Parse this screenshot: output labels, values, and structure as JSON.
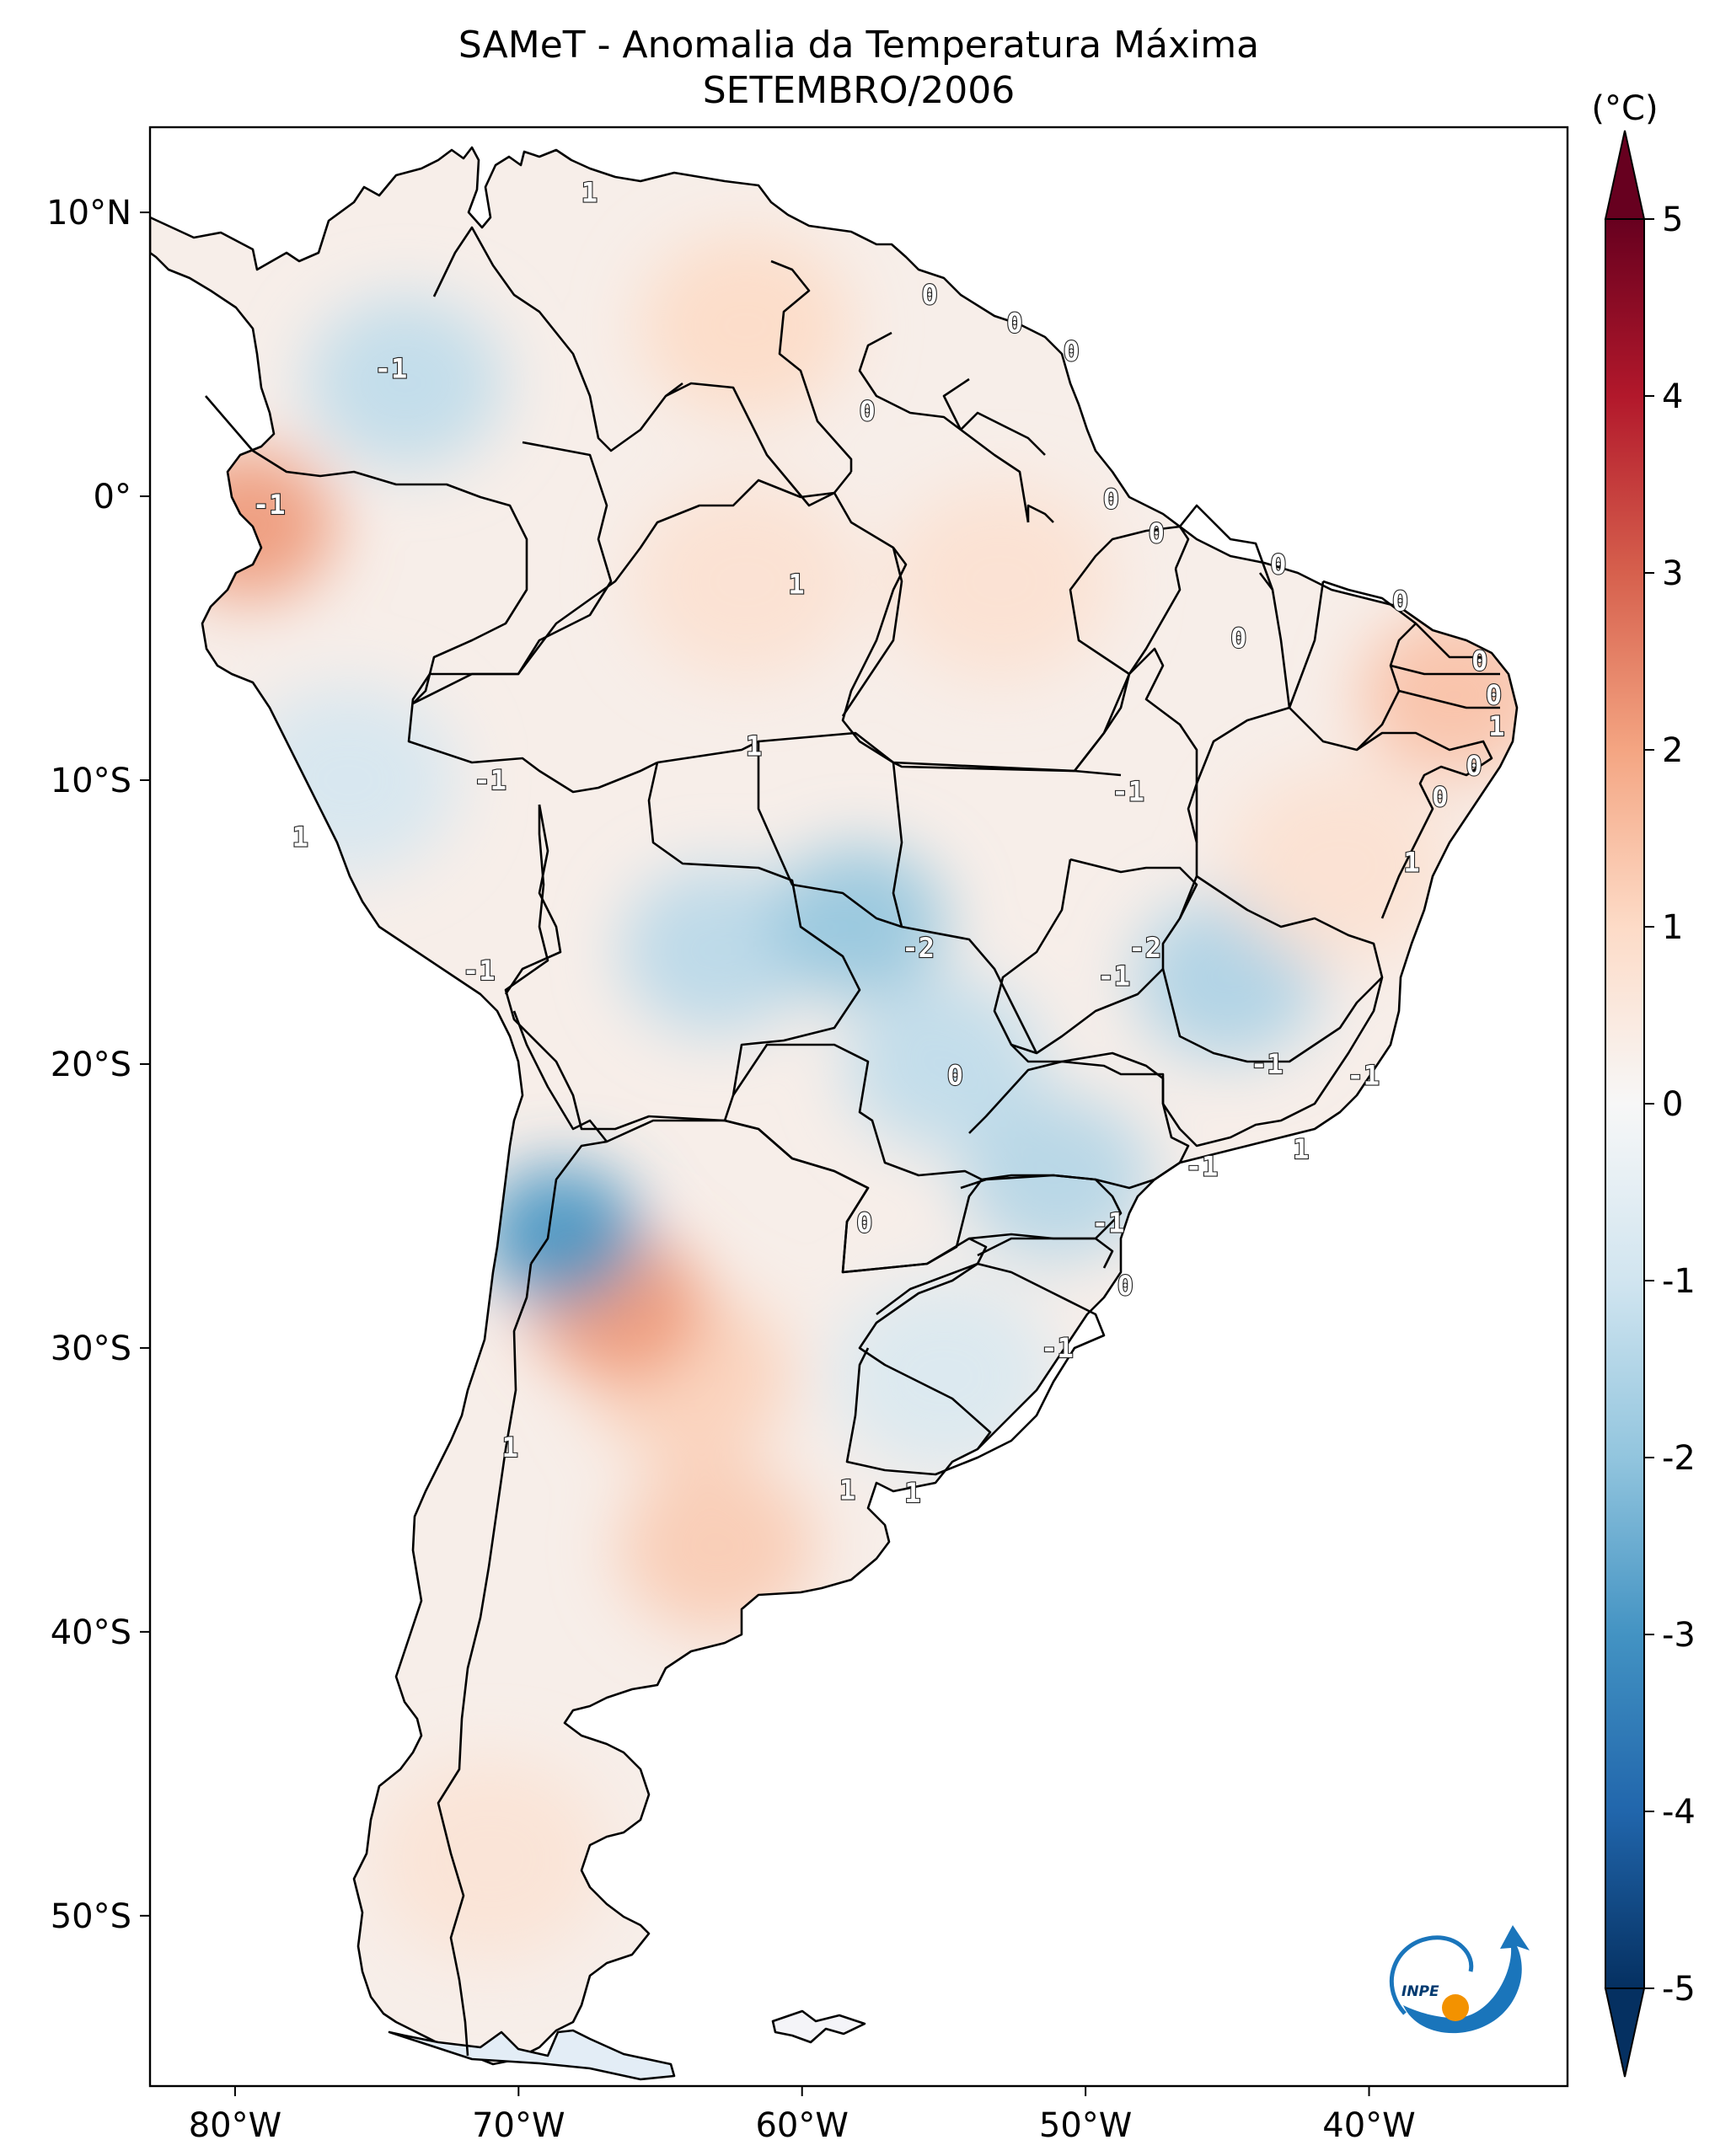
{
  "title": {
    "line1": "SAMeT - Anomalia da Temperatura Máxima",
    "line2": "SETEMBRO/2006"
  },
  "chart_data": {
    "type": "heatmap",
    "title": "SAMeT - Anomalia da Temperatura Máxima",
    "subtitle": "SETEMBRO/2006",
    "x_axis": {
      "range": [
        -83,
        -33
      ],
      "ticks": [
        -80,
        -70,
        -60,
        -50,
        -40
      ],
      "tick_labels": [
        "80°W",
        "70°W",
        "60°W",
        "50°W",
        "40°W"
      ]
    },
    "y_axis": {
      "range": [
        -56,
        13
      ],
      "ticks": [
        10,
        0,
        -10,
        -20,
        -30,
        -40,
        -50
      ],
      "tick_labels": [
        "10°N",
        "0°",
        "10°S",
        "20°S",
        "30°S",
        "40°S",
        "50°S"
      ]
    },
    "colorbar": {
      "unit_label": "(°C)",
      "range": [
        -5,
        5
      ],
      "ticks": [
        5,
        4,
        3,
        2,
        1,
        0,
        -1,
        -2,
        -3,
        -4,
        -5
      ],
      "tick_labels": [
        "5",
        "4",
        "3",
        "2",
        "1",
        "0",
        "-1",
        "-2",
        "-3",
        "-4",
        "-5"
      ],
      "colormap": "RdBu_r",
      "extend": "both",
      "colors": [
        "#053061",
        "#2166ac",
        "#4393c3",
        "#92c5de",
        "#d1e5f0",
        "#f7f7f7",
        "#fddbc7",
        "#f4a582",
        "#d6604d",
        "#b2182b",
        "#67001f"
      ]
    },
    "anomaly_regions": [
      {
        "lon": -62,
        "lat": 6,
        "value": 1.0
      },
      {
        "lon": -74,
        "lat": 4,
        "value": -1.3
      },
      {
        "lon": -79.5,
        "lat": -1,
        "value": 2.2
      },
      {
        "lon": -62,
        "lat": -3,
        "value": 0.8
      },
      {
        "lon": -53,
        "lat": -3,
        "value": 0.8
      },
      {
        "lon": -76,
        "lat": -10,
        "value": -0.9
      },
      {
        "lon": -63,
        "lat": -16,
        "value": -1.4
      },
      {
        "lon": -58,
        "lat": -15,
        "value": -2.0
      },
      {
        "lon": -55,
        "lat": -20,
        "value": -1.3
      },
      {
        "lon": -45,
        "lat": -17,
        "value": -1.6
      },
      {
        "lon": -51,
        "lat": -24,
        "value": -1.5
      },
      {
        "lon": -41,
        "lat": -13,
        "value": 0.8
      },
      {
        "lon": -64,
        "lat": -31,
        "value": 1.2
      },
      {
        "lon": -66.5,
        "lat": -28.5,
        "value": 2.2
      },
      {
        "lon": -63,
        "lat": -37,
        "value": 1.3
      },
      {
        "lon": -68.5,
        "lat": -26,
        "value": -3.0
      },
      {
        "lon": -55,
        "lat": -31,
        "value": -0.8
      },
      {
        "lon": -71,
        "lat": -48,
        "value": 0.7
      },
      {
        "lon": -37,
        "lat": -7,
        "value": 1.5
      }
    ],
    "contour_labels": [
      {
        "lon": -67.5,
        "lat": 10.7,
        "text": "1"
      },
      {
        "lon": -74.5,
        "lat": 4.5,
        "text": "-1"
      },
      {
        "lon": -78.8,
        "lat": -0.3,
        "text": "-1"
      },
      {
        "lon": -55.5,
        "lat": 7.1,
        "text": "0"
      },
      {
        "lon": -52.5,
        "lat": 6.1,
        "text": "0"
      },
      {
        "lon": -50.5,
        "lat": 5.1,
        "text": "0"
      },
      {
        "lon": -57.7,
        "lat": 3.0,
        "text": "0"
      },
      {
        "lon": -49.1,
        "lat": -0.1,
        "text": "0"
      },
      {
        "lon": -60.2,
        "lat": -3.1,
        "text": "1"
      },
      {
        "lon": -47.5,
        "lat": -1.3,
        "text": "0"
      },
      {
        "lon": -43.2,
        "lat": -2.4,
        "text": "0"
      },
      {
        "lon": -38.9,
        "lat": -3.7,
        "text": "0"
      },
      {
        "lon": -36.1,
        "lat": -5.8,
        "text": "0"
      },
      {
        "lon": -35.6,
        "lat": -7.0,
        "text": "0"
      },
      {
        "lon": -35.5,
        "lat": -8.1,
        "text": "1"
      },
      {
        "lon": -36.3,
        "lat": -9.5,
        "text": "0"
      },
      {
        "lon": -44.6,
        "lat": -5.0,
        "text": "0"
      },
      {
        "lon": -37.5,
        "lat": -10.6,
        "text": "0"
      },
      {
        "lon": -61.7,
        "lat": -8.8,
        "text": "1"
      },
      {
        "lon": -71.0,
        "lat": -10.0,
        "text": "-1"
      },
      {
        "lon": -48.5,
        "lat": -10.4,
        "text": "-1"
      },
      {
        "lon": -38.5,
        "lat": -12.9,
        "text": "1"
      },
      {
        "lon": -77.7,
        "lat": -12.0,
        "text": "1"
      },
      {
        "lon": -55.9,
        "lat": -15.9,
        "text": "-2"
      },
      {
        "lon": -71.4,
        "lat": -16.7,
        "text": "-1"
      },
      {
        "lon": -47.9,
        "lat": -15.9,
        "text": "-2"
      },
      {
        "lon": -49.0,
        "lat": -16.9,
        "text": "-1"
      },
      {
        "lon": -54.6,
        "lat": -20.4,
        "text": "0"
      },
      {
        "lon": -43.6,
        "lat": -20.0,
        "text": "-1"
      },
      {
        "lon": -40.2,
        "lat": -20.4,
        "text": "-1"
      },
      {
        "lon": -42.4,
        "lat": -23.0,
        "text": "1"
      },
      {
        "lon": -45.9,
        "lat": -23.6,
        "text": "-1"
      },
      {
        "lon": -57.8,
        "lat": -25.6,
        "text": "0"
      },
      {
        "lon": -49.2,
        "lat": -25.6,
        "text": "-1"
      },
      {
        "lon": -48.6,
        "lat": -27.8,
        "text": "0"
      },
      {
        "lon": -51.0,
        "lat": -30.0,
        "text": "-1"
      },
      {
        "lon": -70.3,
        "lat": -33.5,
        "text": "1"
      },
      {
        "lon": -58.4,
        "lat": -35.0,
        "text": "1"
      },
      {
        "lon": -56.1,
        "lat": -35.1,
        "text": "1"
      }
    ],
    "grid": false,
    "logo_position": "bottom-right"
  }
}
